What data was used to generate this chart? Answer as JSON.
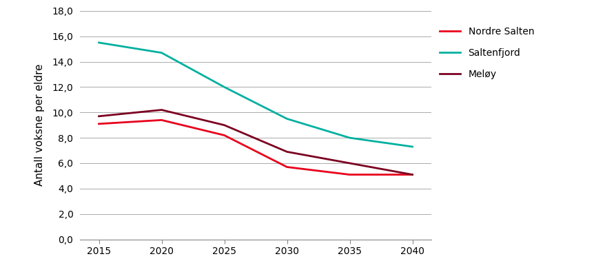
{
  "x": [
    2015,
    2020,
    2025,
    2030,
    2035,
    2040
  ],
  "nordre_salten": [
    9.1,
    9.4,
    8.2,
    5.7,
    5.1,
    5.1
  ],
  "saltenfjord": [
    15.5,
    14.7,
    12.0,
    9.5,
    8.0,
    7.3
  ],
  "meloy": [
    9.7,
    10.2,
    9.0,
    6.9,
    6.0,
    5.1
  ],
  "nordre_salten_color": "#e8001c",
  "saltenfjord_color": "#00b0a0",
  "meloy_color": "#7b0020",
  "ylabel": "Antall voksne per eldre",
  "ylim": [
    0,
    18
  ],
  "ytick_step": 2,
  "legend_labels": [
    "Nordre Salten",
    "Saltenfjord",
    "Meløy"
  ],
  "background_color": "#ffffff",
  "linewidth": 2.0,
  "xlim": [
    2013.5,
    2041.5
  ]
}
